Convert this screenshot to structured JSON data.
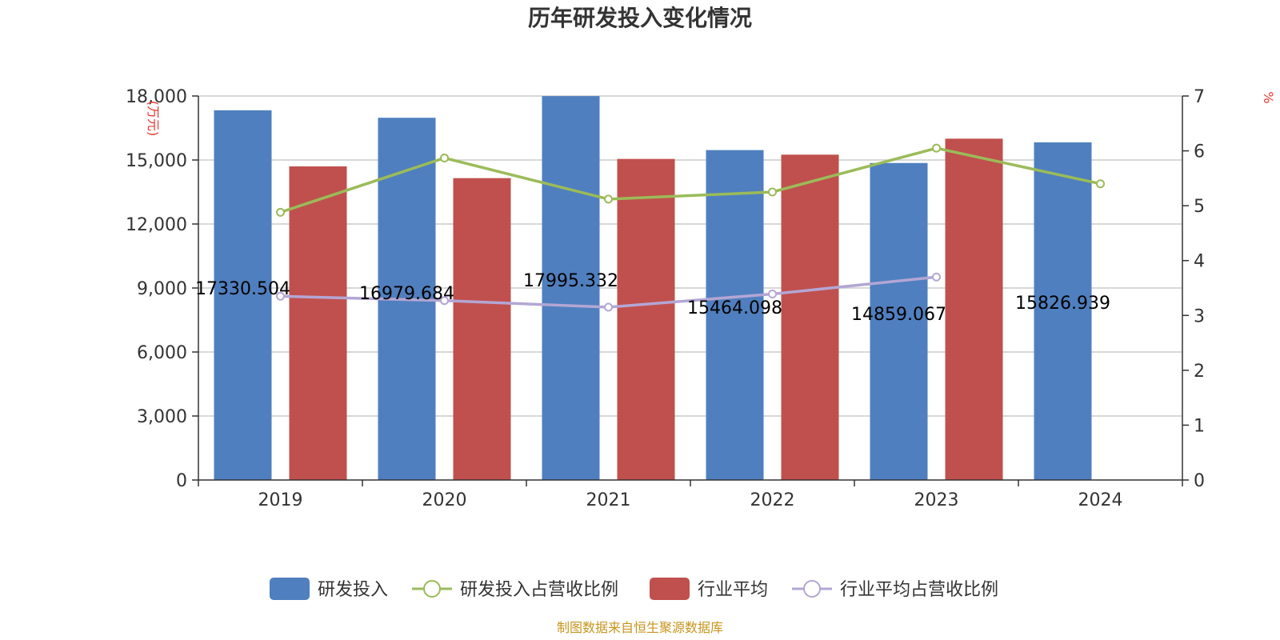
{
  "colors": {
    "rd_bar": "#4f7fbe",
    "industry_bar": "#c0504d",
    "rd_ratio_line": "#9bbb59",
    "industry_ratio_line": "#b3a6d4",
    "unit_text": "#e8352e",
    "footer_text": "#c8951e",
    "grid": "#cccccc",
    "axis": "#333333"
  },
  "footer": "制图数据来自恒生聚源数据库",
  "chart_data": {
    "type": "bar",
    "title": "历年研发投入变化情况",
    "categories": [
      "2019",
      "2020",
      "2021",
      "2022",
      "2023",
      "2024"
    ],
    "ylabel": "(万元)",
    "y2label": "%",
    "ylim": [
      0,
      18000
    ],
    "y2lim": [
      0,
      7
    ],
    "yticks": [
      "0",
      "3,000",
      "6,000",
      "9,000",
      "12,000",
      "15,000",
      "18,000"
    ],
    "y2ticks": [
      "0",
      "1",
      "2",
      "3",
      "4",
      "5",
      "6",
      "7"
    ],
    "grid": true,
    "legend_position": "bottom",
    "series": [
      {
        "name": "研发投入",
        "type": "bar",
        "axis": "left",
        "values": [
          17330.504,
          16979.684,
          17995.332,
          15464.098,
          14859.067,
          15826.939
        ],
        "labels": [
          "17330.504",
          "16979.684",
          "17995.332",
          "15464.098",
          "14859.067",
          "15826.939"
        ]
      },
      {
        "name": "研发投入占营收比例",
        "type": "line",
        "axis": "right",
        "values": [
          4.88,
          5.87,
          5.12,
          5.25,
          6.05,
          5.4
        ]
      },
      {
        "name": "行业平均",
        "type": "bar",
        "axis": "left",
        "values": [
          14700,
          14150,
          15050,
          15250,
          16000,
          null
        ]
      },
      {
        "name": "行业平均占营收比例",
        "type": "line",
        "axis": "right",
        "values": [
          3.35,
          3.27,
          3.15,
          3.39,
          3.7,
          null
        ]
      }
    ]
  }
}
